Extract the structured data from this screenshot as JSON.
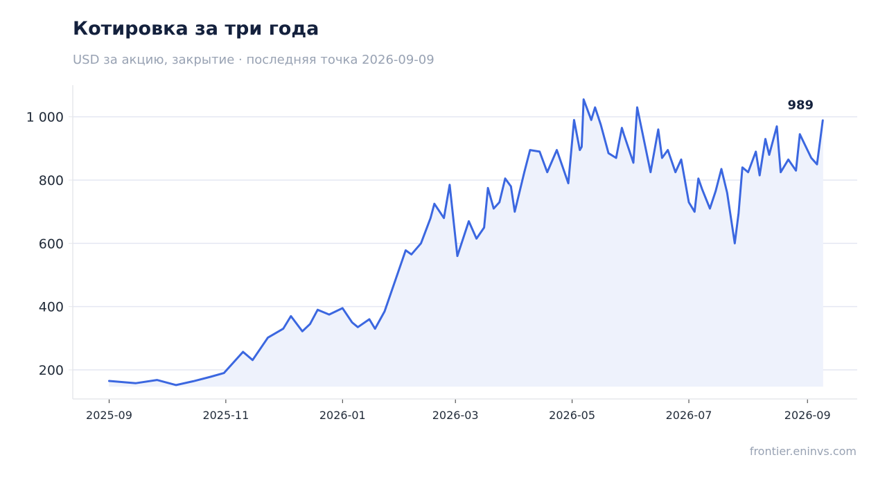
{
  "header": {
    "title": "Котировка за три года",
    "subtitle": "USD за акцию, закрытие · последняя точка 2026-09-09"
  },
  "footer": {
    "source": "frontier.eninvs.com"
  },
  "colors": {
    "line": "#3b67e0",
    "fill": "#eef2fc",
    "grid": "#e4e7f2",
    "axis": "#e5e7eb"
  },
  "chart_data": {
    "type": "area",
    "title": "Котировка за три года",
    "subtitle": "USD за акцию, закрытие · последняя точка 2026-09-09",
    "xlabel": "",
    "ylabel": "",
    "x_ticks": [
      "2025-09",
      "2025-11",
      "2026-01",
      "2026-03",
      "2026-05",
      "2026-07",
      "2026-09"
    ],
    "y_ticks": [
      200,
      400,
      600,
      800,
      1000
    ],
    "y_tick_labels": [
      "200",
      "400",
      "600",
      "800",
      "1 000"
    ],
    "xlim": [
      "2025-08-13",
      "2026-09-27"
    ],
    "ylim": [
      108,
      1100
    ],
    "fill_baseline": 148,
    "grid": true,
    "legend": "none",
    "last_point": {
      "date": "2026-09-09",
      "value": 989,
      "label": "989"
    },
    "series": [
      {
        "x": [
          "2025-09-01",
          "2025-09-15",
          "2025-09-26",
          "2025-10-06",
          "2025-10-15",
          "2025-10-24",
          "2025-10-31",
          "2025-11-10",
          "2025-11-15",
          "2025-11-23",
          "2025-12-01",
          "2025-12-05",
          "2025-12-11",
          "2025-12-15",
          "2025-12-19",
          "2025-12-25",
          "2026-01-01",
          "2026-01-06",
          "2026-01-09",
          "2026-01-15",
          "2026-01-18",
          "2026-01-23",
          "2026-02-03",
          "2026-02-06",
          "2026-02-11",
          "2026-02-16",
          "2026-02-18",
          "2026-02-23",
          "2026-02-26",
          "2026-03-02",
          "2026-03-08",
          "2026-03-12",
          "2026-03-16",
          "2026-03-18",
          "2026-03-21",
          "2026-03-24",
          "2026-03-27",
          "2026-03-30",
          "2026-04-01",
          "2026-04-06",
          "2026-04-09",
          "2026-04-14",
          "2026-04-18",
          "2026-04-23",
          "2026-04-29",
          "2026-05-02",
          "2026-05-05",
          "2026-05-06",
          "2026-05-07",
          "2026-05-11",
          "2026-05-13",
          "2026-05-16",
          "2026-05-20",
          "2026-05-24",
          "2026-05-27",
          "2026-05-28",
          "2026-06-02",
          "2026-06-04",
          "2026-06-11",
          "2026-06-15",
          "2026-06-17",
          "2026-06-20",
          "2026-06-24",
          "2026-06-27",
          "2026-07-01",
          "2026-07-04",
          "2026-07-06",
          "2026-07-08",
          "2026-07-12",
          "2026-07-15",
          "2026-07-18",
          "2026-07-21",
          "2026-07-25",
          "2026-07-27",
          "2026-07-29",
          "2026-08-01",
          "2026-08-05",
          "2026-08-07",
          "2026-08-10",
          "2026-08-12",
          "2026-08-16",
          "2026-08-18",
          "2026-08-22",
          "2026-08-26",
          "2026-08-28",
          "2026-09-01",
          "2026-09-03",
          "2026-09-06",
          "2026-09-09"
        ],
        "values": [
          165,
          158,
          168,
          152,
          164,
          178,
          190,
          257,
          231,
          302,
          330,
          370,
          322,
          345,
          390,
          375,
          395,
          350,
          335,
          360,
          330,
          385,
          578,
          565,
          600,
          680,
          725,
          680,
          785,
          560,
          670,
          615,
          650,
          775,
          710,
          730,
          805,
          780,
          700,
          825,
          895,
          890,
          825,
          895,
          790,
          990,
          895,
          905,
          1055,
          990,
          1030,
          975,
          885,
          870,
          965,
          945,
          855,
          1030,
          825,
          960,
          870,
          895,
          825,
          865,
          730,
          700,
          805,
          770,
          710,
          765,
          835,
          760,
          600,
          695,
          840,
          825,
          890,
          815,
          930,
          880,
          970,
          825,
          865,
          830,
          945,
          895,
          870,
          850,
          989
        ]
      }
    ]
  }
}
